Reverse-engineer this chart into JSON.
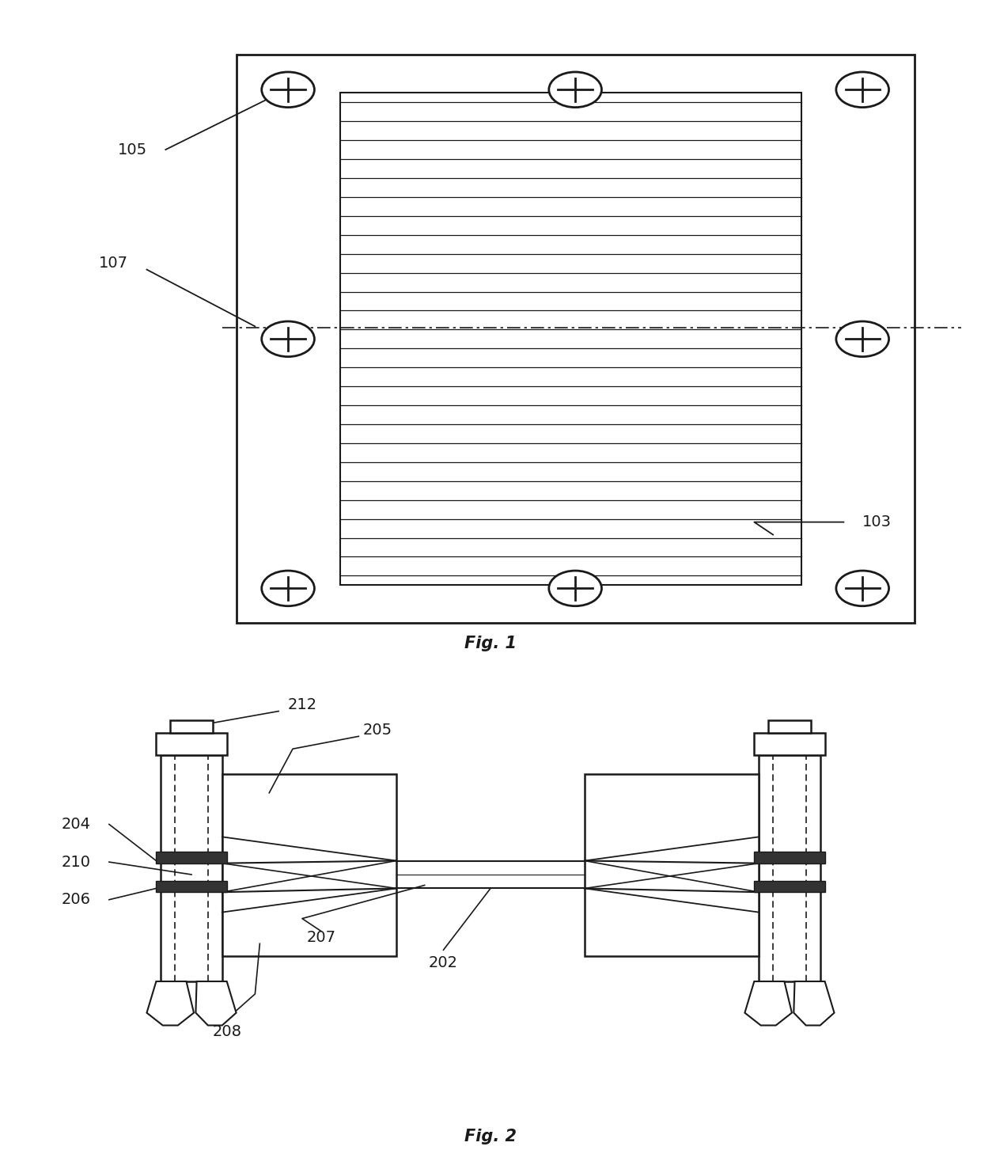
{
  "bg_color": "#ffffff",
  "line_color": "#1a1a1a",
  "fig1_title": "Fig. 1",
  "fig2_title": "Fig. 2"
}
